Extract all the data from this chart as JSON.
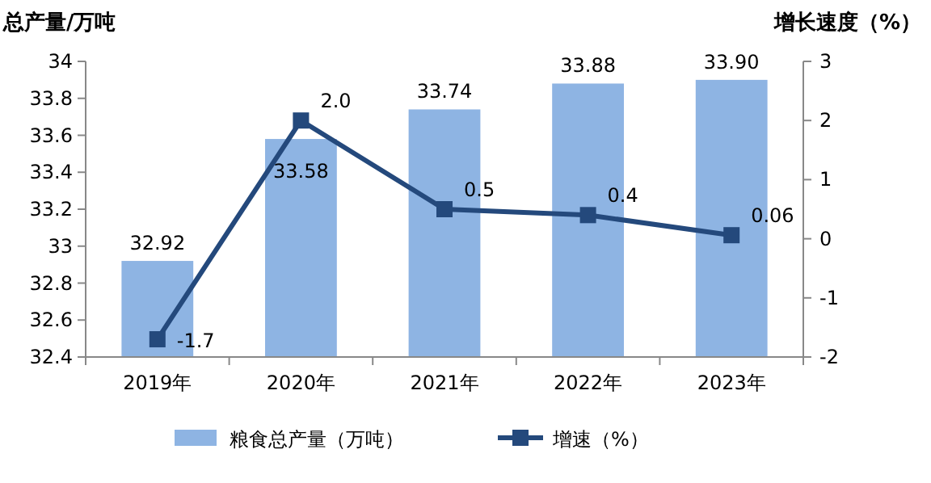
{
  "chart_data": {
    "type": "bar",
    "ylabel": "总产量/万吨",
    "y2label": "增长速度（%）",
    "categories": [
      "2019年",
      "2020年",
      "2021年",
      "2022年",
      "2023年"
    ],
    "series": [
      {
        "name": "粮食总产量（万吨）",
        "color": "#8eb4e3",
        "values": [
          32.92,
          33.58,
          33.74,
          33.88,
          33.9
        ],
        "value_labels": [
          "32.92",
          "33.58",
          "33.74",
          "33.88",
          "33.90"
        ]
      },
      {
        "name": "增速（%）",
        "type": "line",
        "axis": "y2",
        "color": "#24497c",
        "values": [
          -1.7,
          2.0,
          0.5,
          0.4,
          0.06
        ],
        "value_labels": [
          "-1.7",
          "2.0",
          "0.5",
          "0.4",
          "0.06"
        ],
        "marker": "square"
      }
    ],
    "ylim": [
      32.4,
      34
    ],
    "yticks": [
      32.4,
      32.6,
      32.8,
      33,
      33.2,
      33.4,
      33.6,
      33.8,
      34
    ],
    "y2lim": [
      -2,
      3
    ],
    "y2ticks": [
      -2,
      -1,
      0,
      1,
      2,
      3
    ],
    "legend": "bottom",
    "grid": false
  }
}
